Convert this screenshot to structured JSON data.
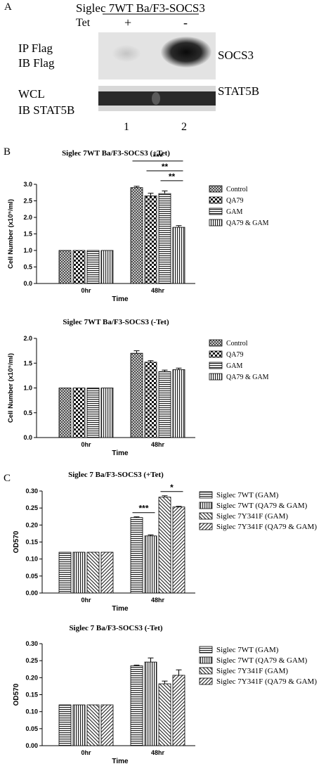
{
  "panels": {
    "A": "A",
    "B": "B",
    "C": "C"
  },
  "blot": {
    "header": "Siglec 7WT Ba/F3-SOCS3",
    "tet_label": "Tet",
    "lane_signs": [
      "+",
      "-"
    ],
    "ip_label_1": "IP Flag",
    "ip_label_2": "IB Flag",
    "wcl_label_1": "WCL",
    "wcl_label_2": "IB STAT5B",
    "band_top": "SOCS3",
    "band_bottom": "STAT5B",
    "lane_numbers": [
      "1",
      "2"
    ]
  },
  "chart_data": [
    {
      "type": "bar",
      "title": "Siglec 7WT Ba/F3-SOCS3 (+Tet)",
      "xlabel": "Time",
      "ylabel": "Cell Number (x10⁵/ml)",
      "categories": [
        "0hr",
        "48hr"
      ],
      "ylim": [
        0,
        3.0
      ],
      "yticks": [
        "0.0",
        "0.5",
        "1.0",
        "1.5",
        "2.0",
        "2.5",
        "3.0"
      ],
      "legend_position": "right",
      "series": [
        {
          "name": "Control",
          "values": [
            1.0,
            2.9
          ],
          "errors": [
            0,
            0.04
          ]
        },
        {
          "name": "QA79",
          "values": [
            1.0,
            2.65
          ],
          "errors": [
            0,
            0.08
          ]
        },
        {
          "name": "GAM",
          "values": [
            1.0,
            2.72
          ],
          "errors": [
            0,
            0.08
          ]
        },
        {
          "name": "QA79 & GAM",
          "values": [
            1.0,
            1.7
          ],
          "errors": [
            0,
            0.05
          ]
        }
      ],
      "significance": [
        {
          "from": 0,
          "to": 3,
          "label": "***"
        },
        {
          "from": 1,
          "to": 3,
          "label": "**"
        },
        {
          "from": 2,
          "to": 3,
          "label": "**"
        }
      ]
    },
    {
      "type": "bar",
      "title": "Siglec 7WT Ba/F3-SOCS3 (-Tet)",
      "xlabel": "Time",
      "ylabel": "Cell Number (x10⁵/ml)",
      "categories": [
        "0hr",
        "48hr"
      ],
      "ylim": [
        0,
        2.0
      ],
      "yticks": [
        "0.0",
        "0.5",
        "1.0",
        "1.5",
        "2.0"
      ],
      "legend_position": "right",
      "series": [
        {
          "name": "Control",
          "values": [
            1.0,
            1.7
          ],
          "errors": [
            0,
            0.05
          ]
        },
        {
          "name": "QA79",
          "values": [
            1.0,
            1.52
          ],
          "errors": [
            0,
            0.03
          ]
        },
        {
          "name": "GAM",
          "values": [
            1.0,
            1.33
          ],
          "errors": [
            0,
            0.03
          ]
        },
        {
          "name": "QA79 & GAM",
          "values": [
            1.0,
            1.37
          ],
          "errors": [
            0,
            0.03
          ]
        }
      ],
      "significance": []
    },
    {
      "type": "bar",
      "title": "Siglec 7 Ba/F3-SOCS3 (+Tet)",
      "xlabel": "Time",
      "ylabel": "OD570",
      "categories": [
        "0hr",
        "48hr"
      ],
      "ylim": [
        0,
        0.3
      ],
      "yticks": [
        "0.00",
        "0.05",
        "0.10",
        "0.15",
        "0.20",
        "0.25",
        "0.30"
      ],
      "legend_position": "right",
      "series": [
        {
          "name": "Siglec 7WT (GAM)",
          "values": [
            0.12,
            0.222
          ],
          "errors": [
            0,
            0.002
          ]
        },
        {
          "name": "Siglec 7WT (QA79 & GAM)",
          "values": [
            0.12,
            0.168
          ],
          "errors": [
            0,
            0.003
          ]
        },
        {
          "name": "Siglec 7Y341F (GAM)",
          "values": [
            0.12,
            0.282
          ],
          "errors": [
            0,
            0.004
          ]
        },
        {
          "name": "Siglec 7Y341F (QA79 & GAM)",
          "values": [
            0.12,
            0.253
          ],
          "errors": [
            0,
            0.002
          ]
        }
      ],
      "significance": [
        {
          "from": 0,
          "to": 1,
          "label": "***"
        },
        {
          "from": 2,
          "to": 3,
          "label": "*"
        }
      ]
    },
    {
      "type": "bar",
      "title": "Siglec 7 Ba/F3-SOCS3 (-Tet)",
      "xlabel": "Time",
      "ylabel": "OD570",
      "categories": [
        "0hr",
        "48hr"
      ],
      "ylim": [
        0,
        0.3
      ],
      "yticks": [
        "0.00",
        "0.05",
        "0.10",
        "0.15",
        "0.20",
        "0.25",
        "0.30"
      ],
      "legend_position": "right",
      "series": [
        {
          "name": "Siglec 7WT (GAM)",
          "values": [
            0.12,
            0.235
          ],
          "errors": [
            0,
            0.002
          ]
        },
        {
          "name": "Siglec 7WT (QA79 & GAM)",
          "values": [
            0.12,
            0.246
          ],
          "errors": [
            0,
            0.012
          ]
        },
        {
          "name": "Siglec 7Y341F (GAM)",
          "values": [
            0.12,
            0.182
          ],
          "errors": [
            0,
            0.008
          ]
        },
        {
          "name": "Siglec 7Y341F (QA79 & GAM)",
          "values": [
            0.12,
            0.207
          ],
          "errors": [
            0,
            0.016
          ]
        }
      ],
      "significance": []
    }
  ]
}
